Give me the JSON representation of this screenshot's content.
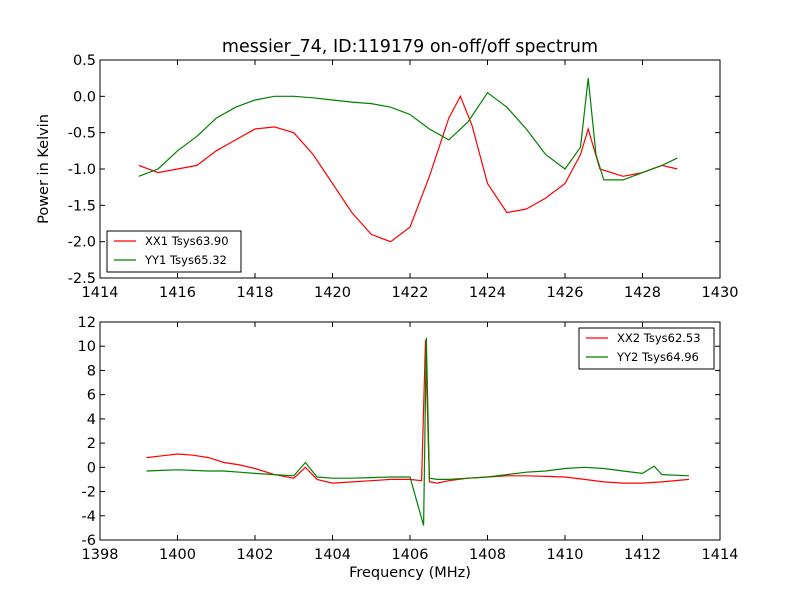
{
  "chart_data": [
    {
      "type": "line",
      "title": "messier_74, ID:119179 on-off/off spectrum",
      "xlabel": "",
      "ylabel": "Power in Kelvin",
      "xlim": [
        1414,
        1430
      ],
      "ylim": [
        -2.5,
        0.5
      ],
      "xticks": [
        "1414",
        "1416",
        "1418",
        "1420",
        "1422",
        "1424",
        "1426",
        "1428",
        "1430"
      ],
      "yticks": [
        "-2.5",
        "-2.0",
        "-1.5",
        "-1.0",
        "-0.5",
        "0.0",
        "0.5"
      ],
      "legend_position": "lower-left",
      "grid": false,
      "series": [
        {
          "name": "XX1 Tsys63.90",
          "color": "#ff0000",
          "x": [
            1415.0,
            1415.5,
            1416.0,
            1416.5,
            1417.0,
            1417.5,
            1418.0,
            1418.5,
            1419.0,
            1419.5,
            1420.0,
            1420.5,
            1421.0,
            1421.5,
            1422.0,
            1422.5,
            1423.0,
            1423.3,
            1423.6,
            1424.0,
            1424.5,
            1425.0,
            1425.5,
            1426.0,
            1426.4,
            1426.6,
            1426.9,
            1427.5,
            1428.0,
            1428.5,
            1428.9
          ],
          "y": [
            -0.95,
            -1.05,
            -1.0,
            -0.95,
            -0.75,
            -0.6,
            -0.45,
            -0.42,
            -0.5,
            -0.8,
            -1.2,
            -1.6,
            -1.9,
            -2.0,
            -1.8,
            -1.1,
            -0.3,
            0.0,
            -0.4,
            -1.2,
            -1.6,
            -1.55,
            -1.4,
            -1.2,
            -0.8,
            -0.45,
            -1.0,
            -1.1,
            -1.05,
            -0.95,
            -1.0
          ]
        },
        {
          "name": "YY1 Tsys65.32",
          "color": "#008000",
          "x": [
            1415.0,
            1415.5,
            1416.0,
            1416.5,
            1417.0,
            1417.5,
            1418.0,
            1418.5,
            1419.0,
            1419.5,
            1420.0,
            1420.5,
            1421.0,
            1421.5,
            1422.0,
            1422.5,
            1423.0,
            1423.5,
            1424.0,
            1424.5,
            1425.0,
            1425.5,
            1426.0,
            1426.4,
            1426.6,
            1426.8,
            1427.0,
            1427.5,
            1428.0,
            1428.5,
            1428.9
          ],
          "y": [
            -1.1,
            -1.0,
            -0.75,
            -0.55,
            -0.3,
            -0.15,
            -0.05,
            0.0,
            0.0,
            -0.02,
            -0.05,
            -0.08,
            -0.1,
            -0.15,
            -0.25,
            -0.45,
            -0.6,
            -0.35,
            0.05,
            -0.15,
            -0.45,
            -0.8,
            -1.0,
            -0.7,
            0.25,
            -0.8,
            -1.15,
            -1.15,
            -1.05,
            -0.95,
            -0.85
          ]
        }
      ]
    },
    {
      "type": "line",
      "title": "",
      "xlabel": "Frequency (MHz)",
      "ylabel": "",
      "xlim": [
        1398,
        1414
      ],
      "ylim": [
        -6,
        12
      ],
      "xticks": [
        "1398",
        "1400",
        "1402",
        "1404",
        "1406",
        "1408",
        "1410",
        "1412",
        "1414"
      ],
      "yticks": [
        "-6",
        "-4",
        "-2",
        "0",
        "2",
        "4",
        "6",
        "8",
        "10",
        "12"
      ],
      "legend_position": "upper-right",
      "grid": false,
      "series": [
        {
          "name": "XX2 Tsys62.53",
          "color": "#ff0000",
          "x": [
            1399.2,
            1399.6,
            1400.0,
            1400.4,
            1400.8,
            1401.2,
            1401.6,
            1402.0,
            1402.5,
            1403.0,
            1403.3,
            1403.6,
            1404.0,
            1404.5,
            1405.0,
            1405.5,
            1406.0,
            1406.3,
            1406.4,
            1406.5,
            1406.7,
            1407.0,
            1407.5,
            1408.0,
            1408.5,
            1409.0,
            1409.5,
            1410.0,
            1410.5,
            1411.0,
            1411.5,
            1412.0,
            1412.5,
            1413.2
          ],
          "y": [
            0.8,
            0.95,
            1.1,
            1.0,
            0.8,
            0.4,
            0.2,
            -0.1,
            -0.6,
            -0.9,
            0.0,
            -1.0,
            -1.3,
            -1.2,
            -1.1,
            -1.0,
            -1.0,
            -1.1,
            10.5,
            -1.2,
            -1.3,
            -1.1,
            -0.9,
            -0.8,
            -0.7,
            -0.7,
            -0.75,
            -0.8,
            -1.0,
            -1.2,
            -1.3,
            -1.3,
            -1.2,
            -1.0
          ]
        },
        {
          "name": "YY2 Tsys64.96",
          "color": "#008000",
          "x": [
            1399.2,
            1399.6,
            1400.0,
            1400.4,
            1400.8,
            1401.2,
            1401.6,
            1402.0,
            1402.5,
            1403.0,
            1403.3,
            1403.6,
            1404.0,
            1404.5,
            1405.0,
            1405.5,
            1406.0,
            1406.35,
            1406.42,
            1406.5,
            1406.7,
            1407.0,
            1407.5,
            1408.0,
            1408.5,
            1409.0,
            1409.5,
            1410.0,
            1410.5,
            1411.0,
            1411.5,
            1412.0,
            1412.3,
            1412.5,
            1413.2
          ],
          "y": [
            -0.3,
            -0.25,
            -0.2,
            -0.25,
            -0.3,
            -0.3,
            -0.4,
            -0.5,
            -0.6,
            -0.7,
            0.4,
            -0.8,
            -0.9,
            -0.9,
            -0.85,
            -0.8,
            -0.8,
            -4.8,
            10.7,
            -0.9,
            -1.0,
            -1.0,
            -0.9,
            -0.8,
            -0.6,
            -0.4,
            -0.3,
            -0.1,
            0.0,
            -0.1,
            -0.3,
            -0.5,
            0.1,
            -0.6,
            -0.7
          ]
        }
      ]
    }
  ]
}
